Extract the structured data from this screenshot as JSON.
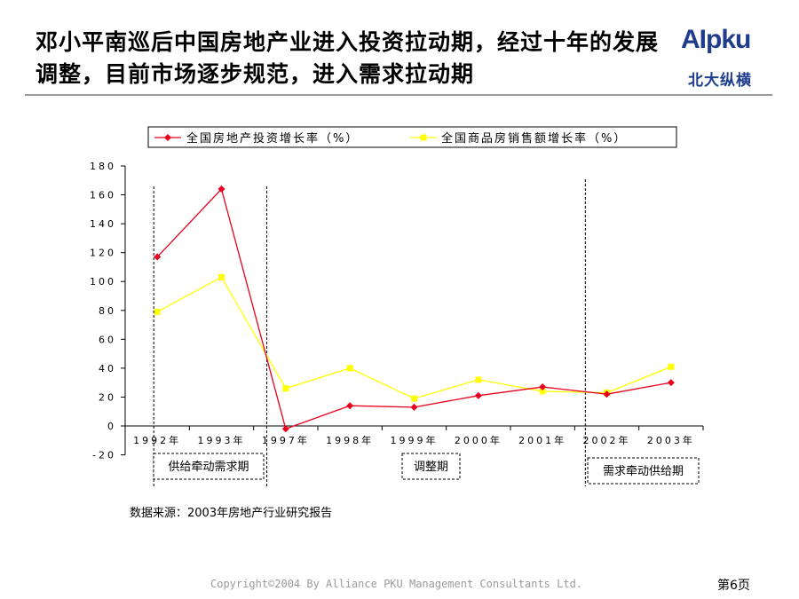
{
  "slide": {
    "title": "邓小平南巡后中国房地产业进入投资拉动期，经过十年的发展调整，目前市场逐步规范，进入需求拉动期",
    "logo_text": "AIpku",
    "logo_sub": "北大纵横",
    "source": "数据来源：2003年房地产行业研究报告",
    "footer": "Copyright©2004 By Alliance PKU Management Consultants Ltd.",
    "page": "第6页"
  },
  "colors": {
    "investment": "#e8001c",
    "sales": "#ffff00",
    "logo": "#1f3d8c"
  },
  "chart_data": {
    "type": "line",
    "title": "",
    "xlabel": "",
    "ylabel": "",
    "categories": [
      "1992年",
      "1993年",
      "1997年",
      "1998年",
      "1999年",
      "2000年",
      "2001年",
      "2002年",
      "2003年"
    ],
    "yticks": [
      "180",
      "160",
      "140",
      "120",
      "100",
      "80",
      "60",
      "40",
      "20",
      "0",
      "-20"
    ],
    "ylim": [
      -20,
      180
    ],
    "legend_position": "top",
    "grid": false,
    "series": [
      {
        "name": "全国房地产投资增长率（%）",
        "color": "#e8001c",
        "marker": "diamond",
        "values": [
          117,
          164,
          -2,
          14,
          13,
          21,
          27,
          22,
          30
        ]
      },
      {
        "name": "全国商品房销售额增长率（%）",
        "color": "#ffff00",
        "marker": "square",
        "values": [
          79,
          103,
          26,
          40,
          19,
          32,
          24,
          23,
          41
        ]
      }
    ],
    "annotations": [
      {
        "label": "供给牵动需求期"
      },
      {
        "label": "调整期"
      },
      {
        "label": "需求牵动供给期"
      }
    ]
  }
}
